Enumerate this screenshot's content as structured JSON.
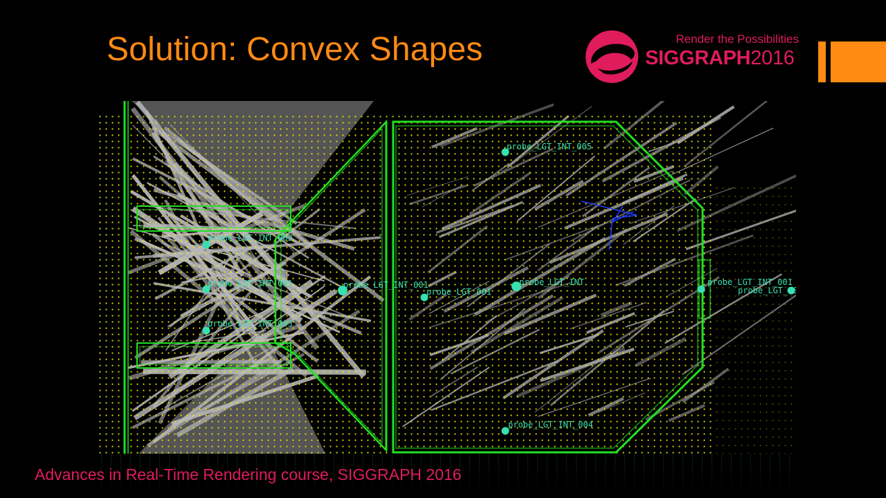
{
  "slide": {
    "title": "Solution: Convex Shapes",
    "footer": "Advances in Real-Time Rendering course, SIGGRAPH 2016"
  },
  "brand": {
    "tagline": "Render the Possibilities",
    "name": "SIGGRAPH",
    "year": "2016",
    "logo_icon": "siggraph-logo-mark",
    "color": "#e01c5c"
  },
  "accent_color": "#ff8a14",
  "viewport": {
    "probes": [
      {
        "label": "probe_LGT_INT_002"
      },
      {
        "label": "probe_LGT_INT_001"
      },
      {
        "label": "probe_LGT_INT_003"
      },
      {
        "label": "probe_LGT_INT_001"
      },
      {
        "label": "probe_LGT_001"
      },
      {
        "label": "probe_LGT_INT"
      },
      {
        "label": "probe_LGT_INT_005"
      },
      {
        "label": "probe_LGT_INT_004"
      },
      {
        "label": "probe_LGT_INT_001"
      },
      {
        "label": "probe_LGT_001"
      }
    ],
    "probe_color": "#38e0b0",
    "volume_color": "#22e022",
    "grid_dot_color": "#e8e800"
  }
}
